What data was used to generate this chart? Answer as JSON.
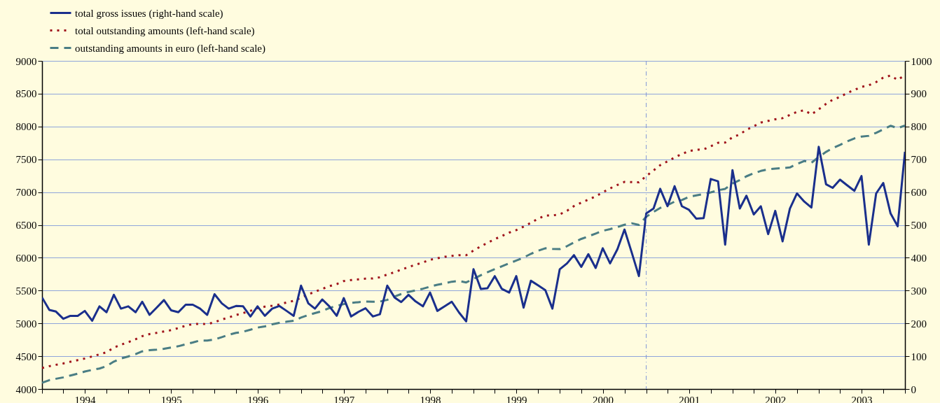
{
  "chart_data": {
    "type": "line",
    "x": [
      "1994-01",
      "1994-02",
      "1994-03",
      "1994-04",
      "1994-05",
      "1994-06",
      "1994-07",
      "1994-08",
      "1994-09",
      "1994-10",
      "1994-11",
      "1994-12",
      "1995-01",
      "1995-02",
      "1995-03",
      "1995-04",
      "1995-05",
      "1995-06",
      "1995-07",
      "1995-08",
      "1995-09",
      "1995-10",
      "1995-11",
      "1995-12",
      "1996-01",
      "1996-02",
      "1996-03",
      "1996-04",
      "1996-05",
      "1996-06",
      "1996-07",
      "1996-08",
      "1996-09",
      "1996-10",
      "1996-11",
      "1996-12",
      "1997-01",
      "1997-02",
      "1997-03",
      "1997-04",
      "1997-05",
      "1997-06",
      "1997-07",
      "1997-08",
      "1997-09",
      "1997-10",
      "1997-11",
      "1997-12",
      "1998-01",
      "1998-02",
      "1998-03",
      "1998-04",
      "1998-05",
      "1998-06",
      "1998-07",
      "1998-08",
      "1998-09",
      "1998-10",
      "1998-11",
      "1998-12",
      "1999-01",
      "1999-02",
      "1999-03",
      "1999-04",
      "1999-05",
      "1999-06",
      "1999-07",
      "1999-08",
      "1999-09",
      "1999-10",
      "1999-11",
      "1999-12",
      "2000-01",
      "2000-02",
      "2000-03",
      "2000-04",
      "2000-05",
      "2000-06",
      "2000-07",
      "2000-08",
      "2000-09",
      "2000-10",
      "2000-11",
      "2000-12",
      "2001-01",
      "2001-02",
      "2001-03",
      "2001-04",
      "2001-05",
      "2001-06",
      "2001-07",
      "2001-08",
      "2001-09",
      "2001-10",
      "2001-11",
      "2001-12",
      "2002-01",
      "2002-02",
      "2002-03",
      "2002-04",
      "2002-05",
      "2002-06",
      "2002-07",
      "2002-08",
      "2002-09",
      "2002-10",
      "2002-11",
      "2002-12",
      "2003-01",
      "2003-02",
      "2003-03",
      "2003-04",
      "2003-05",
      "2003-06",
      "2003-07",
      "2003-08",
      "2003-09",
      "2003-10",
      "2003-11",
      "2003-12",
      "2004-01"
    ],
    "series": [
      {
        "name": "total gross issues (right-hand scale)",
        "color": "#1a2f8c",
        "axis": "y2",
        "line_style": "solid",
        "values": [
          279,
          241,
          236,
          214,
          223,
          223,
          238,
          208,
          252,
          234,
          287,
          245,
          252,
          234,
          266,
          226,
          248,
          271,
          240,
          234,
          257,
          257,
          245,
          226,
          289,
          261,
          245,
          253,
          252,
          221,
          252,
          223,
          245,
          253,
          238,
          223,
          315,
          261,
          245,
          273,
          252,
          223,
          277,
          221,
          235,
          246,
          221,
          228,
          315,
          279,
          265,
          287,
          267,
          252,
          294,
          238,
          252,
          266,
          233,
          206,
          365,
          305,
          307,
          344,
          305,
          294,
          344,
          248,
          330,
          316,
          301,
          245,
          365,
          383,
          408,
          372,
          411,
          369,
          429,
          383,
          426,
          486,
          415,
          344,
          535,
          550,
          610,
          557,
          618,
          557,
          546,
          519,
          521,
          640,
          633,
          440,
          667,
          550,
          589,
          532,
          557,
          472,
          543,
          450,
          550,
          596,
          571,
          553,
          738,
          624,
          613,
          638,
          621,
          604,
          649,
          440,
          596,
          628,
          535,
          496,
          723
        ]
      },
      {
        "name": "total outstanding amounts (left-hand scale)",
        "color": "#a0141c",
        "axis": "y",
        "line_style": "dotted",
        "values": [
          4319,
          4348,
          4369,
          4390,
          4415,
          4440,
          4465,
          4496,
          4528,
          4560,
          4631,
          4674,
          4713,
          4759,
          4805,
          4837,
          4855,
          4876,
          4897,
          4929,
          4965,
          4989,
          4993,
          4989,
          5018,
          5060,
          5089,
          5128,
          5156,
          5191,
          5234,
          5255,
          5269,
          5287,
          5319,
          5344,
          5390,
          5443,
          5482,
          5525,
          5567,
          5599,
          5645,
          5660,
          5670,
          5681,
          5684,
          5702,
          5745,
          5780,
          5819,
          5858,
          5894,
          5929,
          5968,
          5993,
          6014,
          6028,
          6039,
          6039,
          6110,
          6174,
          6227,
          6284,
          6330,
          6383,
          6422,
          6475,
          6532,
          6596,
          6645,
          6645,
          6660,
          6716,
          6787,
          6840,
          6886,
          6936,
          6996,
          7057,
          7110,
          7156,
          7152,
          7149,
          7245,
          7330,
          7411,
          7468,
          7528,
          7580,
          7627,
          7645,
          7652,
          7698,
          7752,
          7755,
          7837,
          7879,
          7950,
          8003,
          8060,
          8085,
          8110,
          8127,
          8177,
          8223,
          8248,
          8184,
          8262,
          8344,
          8408,
          8450,
          8511,
          8557,
          8603,
          8628,
          8677,
          8745,
          8777,
          8709,
          8787
        ]
      },
      {
        "name": "outstanding amounts in euro (left-hand scale)",
        "color": "#4a7d84",
        "axis": "y",
        "line_style": "dashed",
        "values": [
          4096,
          4135,
          4156,
          4177,
          4206,
          4234,
          4266,
          4291,
          4312,
          4348,
          4418,
          4465,
          4496,
          4532,
          4574,
          4592,
          4599,
          4613,
          4631,
          4652,
          4681,
          4709,
          4741,
          4738,
          4755,
          4791,
          4826,
          4855,
          4872,
          4904,
          4936,
          4954,
          4986,
          5007,
          5025,
          5039,
          5089,
          5128,
          5156,
          5188,
          5234,
          5266,
          5294,
          5312,
          5323,
          5333,
          5330,
          5333,
          5358,
          5408,
          5447,
          5479,
          5503,
          5528,
          5560,
          5589,
          5610,
          5635,
          5645,
          5624,
          5677,
          5734,
          5780,
          5826,
          5869,
          5915,
          5957,
          6003,
          6060,
          6106,
          6145,
          6135,
          6131,
          6177,
          6234,
          6287,
          6326,
          6369,
          6411,
          6436,
          6468,
          6503,
          6525,
          6500,
          6624,
          6699,
          6759,
          6801,
          6855,
          6880,
          6929,
          6950,
          6972,
          6996,
          7028,
          7050,
          7131,
          7184,
          7241,
          7287,
          7323,
          7347,
          7358,
          7365,
          7376,
          7429,
          7475,
          7447,
          7535,
          7613,
          7670,
          7720,
          7773,
          7819,
          7847,
          7858,
          7904,
          7957,
          8011,
          7975,
          8014
        ]
      }
    ],
    "xlim": [
      "1994-01",
      "2004-01"
    ],
    "xticks": [
      {
        "value": "1994-01",
        "label": null
      },
      {
        "value": "1994-04",
        "label": null
      },
      {
        "value": "1994-07",
        "label": "1994"
      },
      {
        "value": "1994-10",
        "label": null
      },
      {
        "value": "1995-01",
        "label": null
      },
      {
        "value": "1995-04",
        "label": null
      },
      {
        "value": "1995-07",
        "label": "1995"
      },
      {
        "value": "1995-10",
        "label": null
      },
      {
        "value": "1996-01",
        "label": null
      },
      {
        "value": "1996-04",
        "label": null
      },
      {
        "value": "1996-07",
        "label": "1996"
      },
      {
        "value": "1996-10",
        "label": null
      },
      {
        "value": "1997-01",
        "label": null
      },
      {
        "value": "1997-04",
        "label": null
      },
      {
        "value": "1997-07",
        "label": "1997"
      },
      {
        "value": "1997-10",
        "label": null
      },
      {
        "value": "1998-01",
        "label": null
      },
      {
        "value": "1998-04",
        "label": null
      },
      {
        "value": "1998-07",
        "label": "1998"
      },
      {
        "value": "1998-10",
        "label": null
      },
      {
        "value": "1999-01",
        "label": null
      },
      {
        "value": "1999-04",
        "label": null
      },
      {
        "value": "1999-07",
        "label": "1999"
      },
      {
        "value": "1999-10",
        "label": null
      },
      {
        "value": "2000-01",
        "label": null
      },
      {
        "value": "2000-04",
        "label": null
      },
      {
        "value": "2000-07",
        "label": "2000"
      },
      {
        "value": "2000-10",
        "label": null
      },
      {
        "value": "2001-01",
        "label": null
      },
      {
        "value": "2001-04",
        "label": null
      },
      {
        "value": "2001-07",
        "label": "2001"
      },
      {
        "value": "2001-10",
        "label": null
      },
      {
        "value": "2002-01",
        "label": null
      },
      {
        "value": "2002-04",
        "label": null
      },
      {
        "value": "2002-07",
        "label": "2002"
      },
      {
        "value": "2002-10",
        "label": null
      },
      {
        "value": "2003-01",
        "label": null
      },
      {
        "value": "2003-04",
        "label": null
      },
      {
        "value": "2003-07",
        "label": "2003"
      },
      {
        "value": "2003-10",
        "label": null
      },
      {
        "value": "2004-01",
        "label": null
      }
    ],
    "ylim": [
      4000,
      9000
    ],
    "yticks": [
      4000,
      4500,
      5000,
      5500,
      6000,
      6500,
      7000,
      7500,
      8000,
      8500,
      9000
    ],
    "y2lim": [
      0,
      1000
    ],
    "y2ticks": [
      0,
      100,
      200,
      300,
      400,
      500,
      600,
      700,
      800,
      900,
      1000
    ],
    "ref_lines": [
      {
        "axis": "x",
        "value": "2001-01",
        "color": "#7f96d8",
        "line_style": "dashed"
      }
    ],
    "grid": "y",
    "legend": "top left"
  }
}
